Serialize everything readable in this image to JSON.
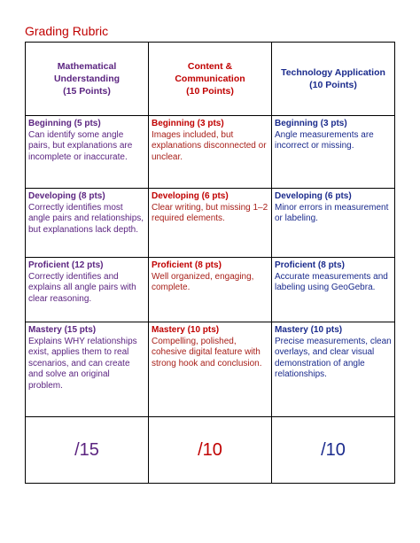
{
  "title": "Grading Rubric",
  "table": {
    "header": [
      [
        "Mathematical",
        "Understanding",
        "(15 Points)"
      ],
      [
        "Content &",
        "Communication",
        "(10 Points)"
      ],
      [
        "Technology Application",
        "(10 Points)"
      ]
    ],
    "rows": [
      [
        {
          "level": "Beginning (5 pts)",
          "text": "Can identify some angle pairs, but explanations are incomplete or inaccurate."
        },
        {
          "level": "Beginning (3 pts)",
          "text": "Images included, but explanations disconnected or unclear."
        },
        {
          "level": "Beginning (3 pts)",
          "text": "Angle measurements are incorrect or missing."
        }
      ],
      [
        {
          "level": "Developing (8 pts)",
          "text": "Correctly identifies most angle pairs and relationships, but explanations lack depth."
        },
        {
          "level": "Developing (6 pts)",
          "text": "Clear writing, but missing 1–2 required elements."
        },
        {
          "level": "Developing (6 pts)",
          "text": "Minor errors in measurement or labeling."
        }
      ],
      [
        {
          "level": "Proficient (12 pts)",
          "text": "Correctly identifies and explains all angle pairs with clear reasoning."
        },
        {
          "level": "Proficient (8 pts)",
          "text": "Well organized, engaging, complete."
        },
        {
          "level": "Proficient (8 pts)",
          "text": "Accurate measurements and labeling using GeoGebra."
        }
      ],
      [
        {
          "level": "Mastery (15 pts)",
          "text": "Explains WHY relationships exist, applies them to real scenarios, and can create and solve an original problem."
        },
        {
          "level": "Mastery (10 pts)",
          "text": "Compelling, polished, cohesive digital feature with strong hook and conclusion."
        },
        {
          "level": "Mastery (10 pts)",
          "text": "Precise measurements, clean overlays, and clear visual demonstration of angle relationships."
        }
      ]
    ],
    "scores": [
      "/15",
      "/10",
      "/10"
    ]
  }
}
